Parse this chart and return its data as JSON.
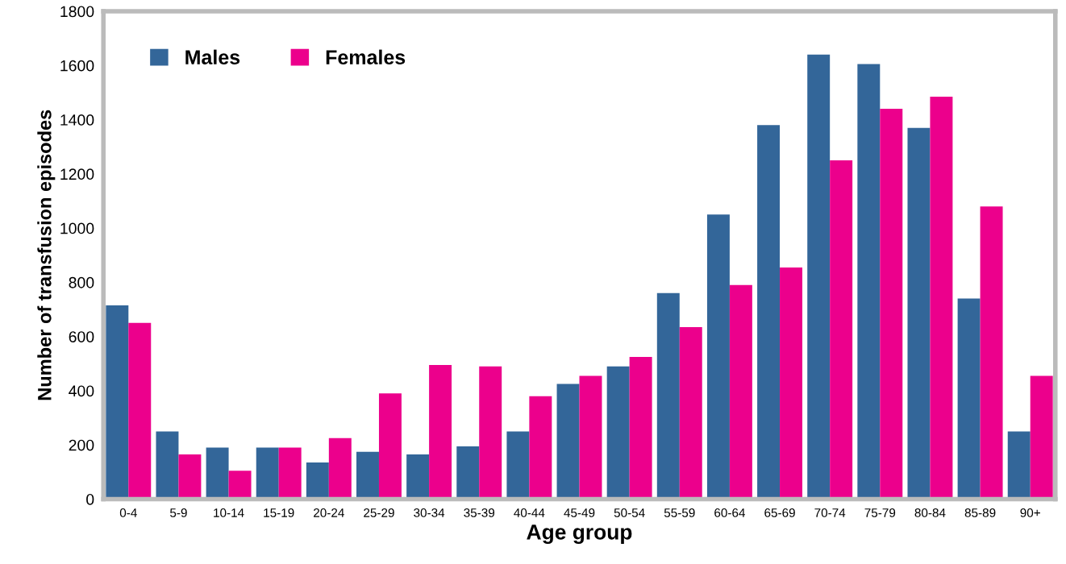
{
  "chart_data": {
    "type": "bar",
    "xlabel": "Age group",
    "ylabel": "Number of transfusion episodes",
    "categories": [
      "0-4",
      "5-9",
      "10-14",
      "15-19",
      "20-24",
      "25-29",
      "30-34",
      "35-39",
      "40-44",
      "45-49",
      "50-54",
      "55-59",
      "60-64",
      "65-69",
      "70-74",
      "75-79",
      "80-84",
      "85-89",
      "90+"
    ],
    "series": [
      {
        "name": "Males",
        "color": "#336699",
        "values": [
          715,
          250,
          190,
          190,
          135,
          175,
          165,
          195,
          250,
          425,
          490,
          760,
          1050,
          1380,
          1640,
          1605,
          1370,
          740,
          250
        ]
      },
      {
        "name": "Females",
        "color": "#ec008c",
        "values": [
          650,
          165,
          105,
          190,
          225,
          390,
          495,
          490,
          380,
          455,
          525,
          635,
          790,
          855,
          1250,
          1440,
          1485,
          1080,
          455
        ]
      }
    ],
    "ylim": [
      0,
      1800
    ],
    "yticks": [
      0,
      200,
      400,
      600,
      800,
      1000,
      1200,
      1400,
      1600,
      1800
    ],
    "grid": false,
    "legend": "top left"
  }
}
